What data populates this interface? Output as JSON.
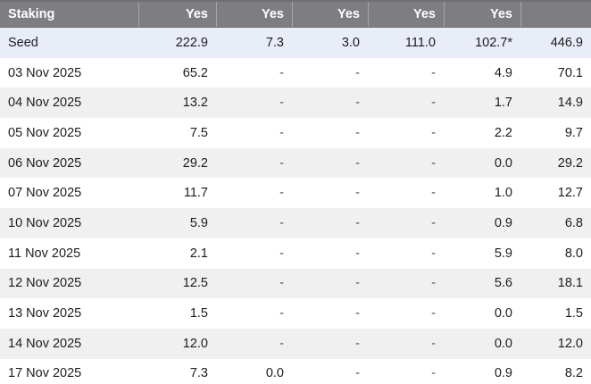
{
  "colors": {
    "header_bg": "#7e7d81",
    "header_text": "#ffffff",
    "header_divider": "#a5a4a8",
    "header_top_border": "#706f73",
    "seed_row_bg": "#e9edf8",
    "alt_row_bg": "#f0f0f0",
    "row_bg": "#ffffff",
    "body_text": "#1c1c1e"
  },
  "table": {
    "header": {
      "label": "Staking",
      "value_columns": [
        "Yes",
        "Yes",
        "Yes",
        "Yes",
        "Yes",
        ""
      ]
    },
    "rows": [
      {
        "label": "Seed",
        "values": [
          "222.9",
          "7.3",
          "3.0",
          "111.0",
          "102.7*",
          "446.9"
        ],
        "highlight": true
      },
      {
        "label": "03 Nov 2025",
        "values": [
          "65.2",
          "-",
          "-",
          "-",
          "4.9",
          "70.1"
        ]
      },
      {
        "label": "04 Nov 2025",
        "values": [
          "13.2",
          "-",
          "-",
          "-",
          "1.7",
          "14.9"
        ]
      },
      {
        "label": "05 Nov 2025",
        "values": [
          "7.5",
          "-",
          "-",
          "-",
          "2.2",
          "9.7"
        ]
      },
      {
        "label": "06 Nov 2025",
        "values": [
          "29.2",
          "-",
          "-",
          "-",
          "0.0",
          "29.2"
        ]
      },
      {
        "label": "07 Nov 2025",
        "values": [
          "11.7",
          "-",
          "-",
          "-",
          "1.0",
          "12.7"
        ]
      },
      {
        "label": "10 Nov 2025",
        "values": [
          "5.9",
          "-",
          "-",
          "-",
          "0.9",
          "6.8"
        ]
      },
      {
        "label": "11 Nov 2025",
        "values": [
          "2.1",
          "-",
          "-",
          "-",
          "5.9",
          "8.0"
        ]
      },
      {
        "label": "12 Nov 2025",
        "values": [
          "12.5",
          "-",
          "-",
          "-",
          "5.6",
          "18.1"
        ]
      },
      {
        "label": "13 Nov 2025",
        "values": [
          "1.5",
          "-",
          "-",
          "-",
          "0.0",
          "1.5"
        ]
      },
      {
        "label": "14 Nov 2025",
        "values": [
          "12.0",
          "-",
          "-",
          "-",
          "0.0",
          "12.0"
        ]
      },
      {
        "label": "17 Nov 2025",
        "values": [
          "7.3",
          "0.0",
          "-",
          "-",
          "0.9",
          "8.2"
        ]
      }
    ]
  },
  "chart_data": {
    "type": "table",
    "columns": [
      "Staking",
      "Yes",
      "Yes",
      "Yes",
      "Yes",
      "Yes",
      ""
    ],
    "rows": [
      [
        "Seed",
        "222.9",
        "7.3",
        "3.0",
        "111.0",
        "102.7*",
        "446.9"
      ],
      [
        "03 Nov 2025",
        "65.2",
        "-",
        "-",
        "-",
        "4.9",
        "70.1"
      ],
      [
        "04 Nov 2025",
        "13.2",
        "-",
        "-",
        "-",
        "1.7",
        "14.9"
      ],
      [
        "05 Nov 2025",
        "7.5",
        "-",
        "-",
        "-",
        "2.2",
        "9.7"
      ],
      [
        "06 Nov 2025",
        "29.2",
        "-",
        "-",
        "-",
        "0.0",
        "29.2"
      ],
      [
        "07 Nov 2025",
        "11.7",
        "-",
        "-",
        "-",
        "1.0",
        "12.7"
      ],
      [
        "10 Nov 2025",
        "5.9",
        "-",
        "-",
        "-",
        "0.9",
        "6.8"
      ],
      [
        "11 Nov 2025",
        "2.1",
        "-",
        "-",
        "-",
        "5.9",
        "8.0"
      ],
      [
        "12 Nov 2025",
        "12.5",
        "-",
        "-",
        "-",
        "5.6",
        "18.1"
      ],
      [
        "13 Nov 2025",
        "1.5",
        "-",
        "-",
        "-",
        "0.0",
        "1.5"
      ],
      [
        "14 Nov 2025",
        "12.0",
        "-",
        "-",
        "-",
        "0.0",
        "12.0"
      ],
      [
        "17 Nov 2025",
        "7.3",
        "0.0",
        "-",
        "-",
        "0.9",
        "8.2"
      ]
    ]
  }
}
